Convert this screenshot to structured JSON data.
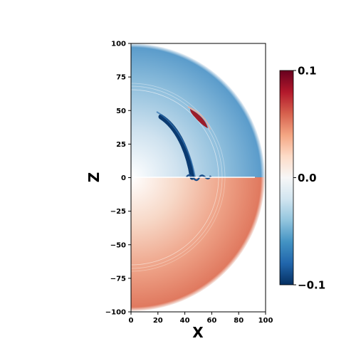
{
  "chart_data": {
    "type": "heatmap",
    "title": "",
    "xlabel": "X",
    "ylabel": "Z",
    "xlim": [
      0,
      100
    ],
    "ylim": [
      -100,
      100
    ],
    "x_ticks": [
      "0",
      "20",
      "40",
      "60",
      "80",
      "100"
    ],
    "y_ticks": [
      "100",
      "75",
      "50",
      "25",
      "0",
      "−25",
      "−50",
      "−75",
      "−100"
    ],
    "colormap": "RdBu_r",
    "colorbar": {
      "range": [
        -0.1,
        0.1
      ],
      "ticks": [
        "0.1",
        "0.0",
        "−0.1"
      ],
      "colors": [
        "#67001f",
        "#b2182b",
        "#d6604d",
        "#f4a582",
        "#fddbc7",
        "#f7f7f7",
        "#d1e5f0",
        "#92c5de",
        "#4393c3",
        "#2166ac",
        "#053061"
      ]
    },
    "field": {
      "outer_radius": 100,
      "upper_half_sign": "negative",
      "lower_half_sign": "positive",
      "features": [
        {
          "kind": "strong-negative-arc",
          "radius": 55
        },
        {
          "kind": "strong-positive-patch",
          "x": 53,
          "z": 45
        }
      ]
    }
  }
}
